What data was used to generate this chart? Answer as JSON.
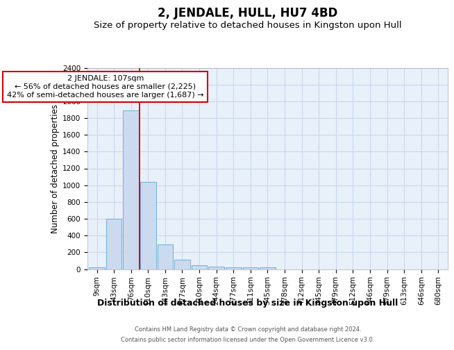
{
  "title": "2, JENDALE, HULL, HU7 4BD",
  "subtitle": "Size of property relative to detached houses in Kingston upon Hull",
  "xlabel": "Distribution of detached houses by size in Kingston upon Hull",
  "ylabel": "Number of detached properties",
  "footer_line1": "Contains HM Land Registry data © Crown copyright and database right 2024.",
  "footer_line2": "Contains public sector information licensed under the Open Government Licence v3.0.",
  "bin_labels": [
    "9sqm",
    "43sqm",
    "76sqm",
    "110sqm",
    "143sqm",
    "177sqm",
    "210sqm",
    "244sqm",
    "277sqm",
    "311sqm",
    "345sqm",
    "378sqm",
    "412sqm",
    "445sqm",
    "479sqm",
    "512sqm",
    "546sqm",
    "579sqm",
    "613sqm",
    "646sqm",
    "680sqm"
  ],
  "bar_values": [
    20,
    600,
    1890,
    1035,
    290,
    110,
    47,
    25,
    20,
    20,
    20,
    0,
    0,
    0,
    0,
    0,
    0,
    0,
    0,
    0,
    0
  ],
  "bar_color": "#ccdaf0",
  "bar_edge_color": "#6baed6",
  "red_line_x": 2.5,
  "annotation_line1": "2 JENDALE: 107sqm",
  "annotation_line2": "← 56% of detached houses are smaller (2,225)",
  "annotation_line3": "42% of semi-detached houses are larger (1,687) →",
  "ylim": [
    0,
    2400
  ],
  "yticks": [
    0,
    200,
    400,
    600,
    800,
    1000,
    1200,
    1400,
    1600,
    1800,
    2000,
    2200,
    2400
  ],
  "background_color": "#e8f0fa",
  "grid_color": "#c5d5ea",
  "title_fontsize": 12,
  "subtitle_fontsize": 9.5,
  "ylabel_fontsize": 8.5,
  "xlabel_fontsize": 9,
  "tick_fontsize": 7.5,
  "annotation_fontsize": 8,
  "footer_fontsize": 6
}
